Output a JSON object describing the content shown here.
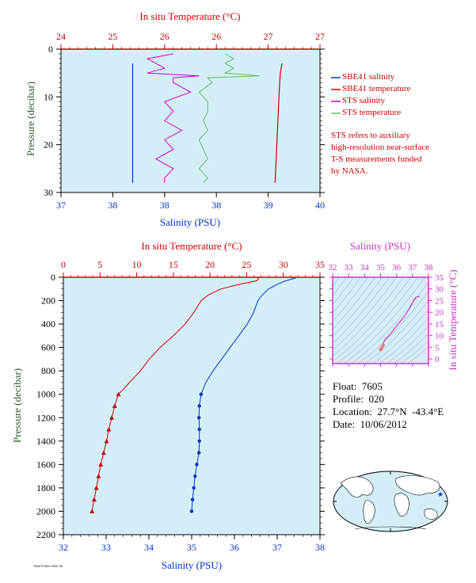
{
  "colors": {
    "background": "#d4eef8",
    "temperature": "#cc0000",
    "salinity": "#0033cc",
    "magenta": "#cc33cc",
    "green": "#66bb66",
    "pressure_label": "#2a5a2a",
    "sts_salinity": "#cc00cc",
    "sts_temperature": "#66bb66"
  },
  "top_panel": {
    "temp_axis_title": "In situ Temperature (°C)",
    "sal_axis_title": "Salinity (PSU)",
    "pressure_axis_title": "Pressure (decibar)",
    "temp_ticks": [
      "24",
      "25",
      "26",
      "26",
      "27",
      "27"
    ],
    "sal_ticks": [
      "37",
      "38",
      "38",
      "38",
      "39",
      "40"
    ],
    "pressure_ticks": [
      "0",
      "10",
      "20",
      "30"
    ]
  },
  "legend": {
    "items": [
      {
        "label": "SBE41 salinity",
        "color": "#0033cc"
      },
      {
        "label": "SBE41 temperature",
        "color": "#cc0000"
      },
      {
        "label": "STS salinity",
        "color": "#cc00cc"
      },
      {
        "label": "STS temperature",
        "color": "#66bb66"
      }
    ],
    "note_lines": [
      "STS refers to auxiliary",
      "high-resolution near-surface",
      "T-S measurements funded",
      "by NASA."
    ]
  },
  "main_panel": {
    "temp_axis_title": "In situ Temperature (°C)",
    "sal_axis_title": "Salinity (PSU)",
    "pressure_axis_title": "Pressure (decibar)",
    "temp_ticks": [
      "0",
      "5",
      "10",
      "15",
      "20",
      "25",
      "30",
      "35"
    ],
    "sal_ticks": [
      "32",
      "33",
      "34",
      "35",
      "36",
      "37",
      "38"
    ],
    "pressure_ticks": [
      "0",
      "200",
      "400",
      "600",
      "800",
      "1000",
      "1200",
      "1400",
      "1600",
      "1800",
      "2000",
      "2200"
    ]
  },
  "ts_panel": {
    "sal_axis_title": "Salinity (PSU)",
    "temp_axis_title": "In situ Temperature (°C)",
    "sal_ticks": [
      "32",
      "33",
      "34",
      "35",
      "36",
      "37",
      "38"
    ],
    "temp_ticks": [
      "0",
      "5",
      "10",
      "15",
      "20",
      "25",
      "30",
      "35"
    ]
  },
  "info": {
    "float": "Float:  7605",
    "profile": "Profile:  020",
    "location": "Location:  27.7°N  -43.4°E",
    "date": "Date:  10/06/2012"
  },
  "footer": "7605 P2000  0000 06",
  "chart_data": [
    {
      "type": "line",
      "title": "",
      "xlabel": "Salinity (PSU)",
      "x2label": "In situ Temperature (°C)",
      "ylabel": "Pressure (decibar)",
      "xlim": [
        37,
        40
      ],
      "x2lim": [
        24,
        27
      ],
      "ylim": [
        30,
        0
      ],
      "series": [
        {
          "name": "SBE41 salinity",
          "axis": "salinity",
          "pressure": [
            3,
            8,
            14,
            20,
            28
          ],
          "values": [
            37.83,
            37.83,
            37.83,
            37.83,
            37.83
          ]
        },
        {
          "name": "SBE41 temperature",
          "axis": "temperature",
          "pressure": [
            3,
            5,
            8,
            12,
            16,
            20,
            24,
            28
          ],
          "values": [
            26.56,
            26.54,
            26.53,
            26.52,
            26.51,
            26.5,
            26.49,
            26.48
          ]
        },
        {
          "name": "STS salinity",
          "axis": "salinity",
          "pressure": [
            1,
            2,
            3,
            4,
            5,
            5.6,
            6,
            7,
            9,
            11,
            13,
            15,
            17,
            19,
            21,
            23,
            25,
            27,
            28
          ],
          "values": [
            38.3,
            38.0,
            38.1,
            38.2,
            38.0,
            38.6,
            38.3,
            38.3,
            38.5,
            38.2,
            38.3,
            38.2,
            38.4,
            38.2,
            38.3,
            38.1,
            38.3,
            38.2,
            38.2
          ]
        },
        {
          "name": "STS temperature",
          "axis": "temperature",
          "pressure": [
            1,
            2,
            3,
            4,
            5,
            5.6,
            6,
            7,
            9,
            11,
            13,
            15,
            17,
            19,
            21,
            23,
            25,
            27,
            28
          ],
          "values": [
            25.9,
            26.0,
            25.9,
            26.0,
            25.9,
            26.3,
            25.7,
            25.75,
            25.6,
            25.7,
            25.7,
            25.65,
            25.7,
            25.6,
            25.65,
            25.7,
            25.6,
            25.7,
            25.65
          ]
        }
      ]
    },
    {
      "type": "line",
      "title": "",
      "xlabel": "Salinity (PSU)",
      "x2label": "In situ Temperature (°C)",
      "ylabel": "Pressure (decibar)",
      "xlim": [
        32,
        38
      ],
      "x2lim": [
        0,
        35
      ],
      "ylim": [
        2200,
        0
      ],
      "series": [
        {
          "name": "Temperature",
          "axis": "temperature",
          "pressure": [
            0,
            10,
            30,
            60,
            100,
            150,
            200,
            300,
            400,
            500,
            600,
            700,
            800,
            900,
            950,
            1000,
            1100,
            1200,
            1300,
            1400,
            1500,
            1600,
            1700,
            1800,
            1900,
            2000
          ],
          "values": [
            26.8,
            26.6,
            26.4,
            24.0,
            21.5,
            19.8,
            18.8,
            17.8,
            16.6,
            15.0,
            13.2,
            11.7,
            10.5,
            9.0,
            8.3,
            7.5,
            7.0,
            6.6,
            6.2,
            5.9,
            5.5,
            5.1,
            4.8,
            4.5,
            4.2,
            3.9
          ]
        },
        {
          "name": "Salinity",
          "axis": "salinity",
          "pressure": [
            0,
            10,
            30,
            60,
            100,
            150,
            200,
            300,
            400,
            500,
            600,
            700,
            800,
            900,
            1000,
            1100,
            1200,
            1300,
            1400,
            1500,
            1600,
            1700,
            1800,
            1900,
            2000
          ],
          "values": [
            37.45,
            37.4,
            37.2,
            37.0,
            36.8,
            36.65,
            36.55,
            36.45,
            36.3,
            36.1,
            35.9,
            35.7,
            35.5,
            35.33,
            35.22,
            35.18,
            35.17,
            35.18,
            35.18,
            35.17,
            35.12,
            35.08,
            35.05,
            35.02,
            35.0
          ]
        }
      ]
    },
    {
      "type": "line",
      "title": "",
      "xlabel": "Salinity (PSU)",
      "ylabel": "In situ Temperature (°C)",
      "xlim": [
        32,
        38
      ],
      "ylim": [
        -2,
        35
      ],
      "series": [
        {
          "name": "T-S",
          "salinity": [
            35.0,
            35.05,
            35.1,
            35.17,
            35.18,
            35.3,
            35.6,
            35.9,
            36.1,
            36.3,
            36.55,
            36.8,
            37.0,
            37.2,
            37.45
          ],
          "temperature": [
            3.9,
            4.5,
            5.1,
            5.9,
            7.0,
            8.5,
            10.5,
            13.2,
            15.0,
            16.6,
            18.8,
            21.5,
            24.0,
            26.4,
            26.8
          ]
        }
      ]
    }
  ]
}
